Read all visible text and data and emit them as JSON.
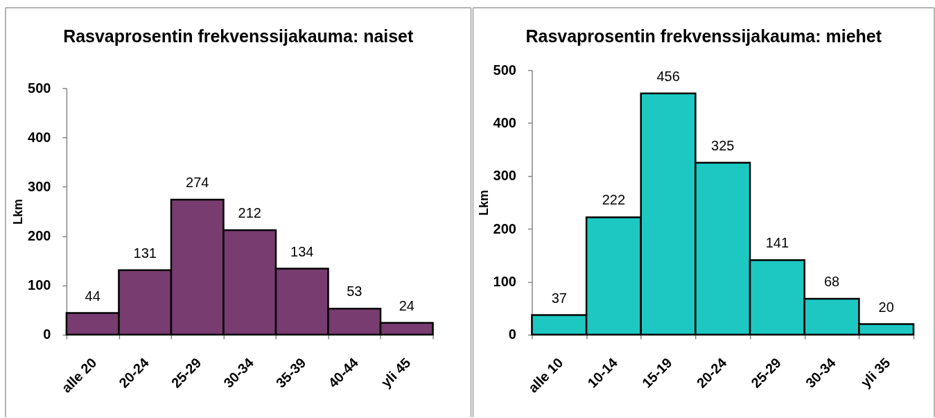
{
  "chart_data": [
    {
      "type": "bar",
      "title": "Rasvaprosentin frekvenssijakauma: naiset",
      "ylabel": "Lkm",
      "categories": [
        "alle 20",
        "20-24",
        "25-29",
        "30-34",
        "35-39",
        "40-44",
        "yli 45"
      ],
      "values": [
        44,
        131,
        274,
        212,
        134,
        53,
        24
      ],
      "color": "#783c71",
      "ylim": [
        0,
        500
      ],
      "yticks": [
        0,
        100,
        200,
        300,
        400,
        500
      ],
      "data_labels": true
    },
    {
      "type": "bar",
      "title": "Rasvaprosentin frekvenssijakauma: miehet",
      "ylabel": "Lkm",
      "categories": [
        "alle 10",
        "10-14",
        "15-19",
        "20-24",
        "25-29",
        "30-34",
        "yli 35"
      ],
      "values": [
        37,
        222,
        456,
        325,
        141,
        68,
        20
      ],
      "color": "#1dc8c2",
      "ylim": [
        0,
        500
      ],
      "yticks": [
        0,
        100,
        200,
        300,
        400,
        500
      ],
      "data_labels": true
    }
  ]
}
